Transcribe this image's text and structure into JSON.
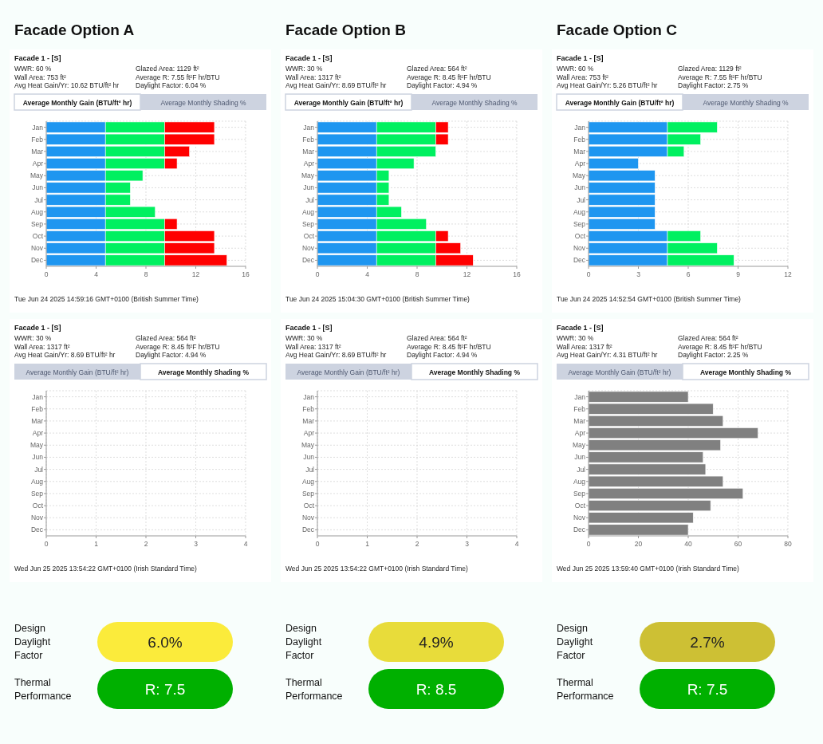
{
  "chart_data": [
    {
      "type": "bar",
      "orientation": "horizontal",
      "stacked": true,
      "grid": true,
      "title": "Facade Option A",
      "subtitle": "Facade 1 - [S]",
      "xlabel": "Average Monthly Gain (BTU/ft² hr)",
      "annotations": [
        "WWR: 60 %",
        "Glazed Area: 1129 ft²",
        "Wall Area: 753 ft²",
        "Average R: 7.55 ft²F hr/BTU",
        "Avg Heat Gain/Yr: 10.62 BTU/ft² hr",
        "Daylight Factor: 6.04 %",
        "Average Monthly Shading %",
        "Tue Jun 24 2025 14:59:16 GMT+0100 (British Summer Time)"
      ],
      "categories": [
        "Jan",
        "Feb",
        "Mar",
        "Apr",
        "May",
        "Jun",
        "Jul",
        "Aug",
        "Sep",
        "Oct",
        "Nov",
        "Dec"
      ],
      "xlim": [
        0,
        16
      ],
      "xticks": [
        0,
        4,
        8,
        12,
        16
      ],
      "series": [
        {
          "color": "#1e96f0",
          "values": [
            4.75,
            4.75,
            4.75,
            4.75,
            4.75,
            4.75,
            4.75,
            4.75,
            4.75,
            4.75,
            4.75,
            4.75
          ]
        },
        {
          "color": "#00f060",
          "values": [
            4.75,
            4.75,
            4.75,
            4.75,
            3,
            2,
            2,
            4,
            4.75,
            4.75,
            4.75,
            4.75
          ]
        },
        {
          "color": "#ff0000",
          "values": [
            4,
            4,
            2,
            1,
            null,
            null,
            null,
            null,
            1,
            4,
            4,
            5
          ]
        }
      ]
    },
    {
      "type": "bar",
      "orientation": "horizontal",
      "stacked": true,
      "grid": true,
      "title": "Facade Option B",
      "subtitle": "Facade 1 - [S]",
      "xlabel": "Average Monthly Gain (BTU/ft² hr)",
      "annotations": [
        "WWR: 30 %",
        "Glazed Area: 564 ft²",
        "Wall Area: 1317 ft²",
        "Average R: 8.45 ft²F hr/BTU",
        "Avg Heat Gain/Yr: 8.69 BTU/ft² hr",
        "Daylight Factor: 4.94 %",
        "Average Monthly Shading %",
        "Tue Jun 24 2025 15:04:30 GMT+0100 (British Summer Time)"
      ],
      "categories": [
        "Jan",
        "Feb",
        "Mar",
        "Apr",
        "May",
        "Jun",
        "Jul",
        "Aug",
        "Sep",
        "Oct",
        "Nov",
        "Dec"
      ],
      "xlim": [
        0,
        16
      ],
      "xticks": [
        0,
        4,
        8,
        12,
        16
      ],
      "series": [
        {
          "color": "#1e96f0",
          "values": [
            4.75,
            4.75,
            4.75,
            4.75,
            4.75,
            4.75,
            4.75,
            4.75,
            4.75,
            4.75,
            4.75,
            4.75
          ]
        },
        {
          "color": "#00f060",
          "values": [
            4.75,
            4.75,
            4.75,
            3,
            1,
            1,
            1,
            2,
            4,
            4.75,
            4.75,
            4.75
          ]
        },
        {
          "color": "#ff0000",
          "values": [
            1,
            1,
            null,
            null,
            null,
            null,
            null,
            null,
            null,
            1,
            2,
            3
          ]
        }
      ]
    },
    {
      "type": "bar",
      "orientation": "horizontal",
      "stacked": true,
      "grid": true,
      "title": "Facade Option C",
      "subtitle": "Facade 1 - [S]",
      "xlabel": "Average Monthly Gain (BTU/ft² hr)",
      "annotations": [
        "WWR: 60 %",
        "Glazed Area: 1129 ft²",
        "Wall Area: 753 ft²",
        "Average R: 7.55 ft²F hr/BTU",
        "Avg Heat Gain/Yr: 5.26 BTU/ft² hr",
        "Daylight Factor: 2.75 %",
        "Average Monthly Shading %",
        "Tue Jun 24 2025 14:52:54 GMT+0100 (British Summer Time)"
      ],
      "categories": [
        "Jan",
        "Feb",
        "Mar",
        "Apr",
        "May",
        "Jun",
        "Jul",
        "Aug",
        "Sep",
        "Oct",
        "Nov",
        "Dec"
      ],
      "xlim": [
        0,
        12
      ],
      "xticks": [
        0,
        3,
        6,
        9,
        12
      ],
      "series": [
        {
          "color": "#1e96f0",
          "values": [
            4.75,
            4.75,
            4.75,
            3,
            4,
            4,
            4,
            4,
            4,
            4.75,
            4.75,
            4.75
          ]
        },
        {
          "color": "#00f060",
          "values": [
            3,
            2,
            1,
            null,
            null,
            null,
            null,
            null,
            null,
            2,
            3,
            4
          ]
        }
      ]
    },
    {
      "type": "bar",
      "orientation": "horizontal",
      "grid": true,
      "subtitle": "Facade 1 - [S]",
      "xlabel": "Average Monthly Shading %",
      "annotations": [
        "WWR: 30 %",
        "Glazed Area: 564 ft²",
        "Wall Area: 1317 ft²",
        "Average R: 8.45 ft²F hr/BTU",
        "Avg Heat Gain/Yr: 8.69 BTU/ft² hr",
        "Daylight Factor: 4.94 %",
        "Average Monthly Gain (BTU/ft² hr)",
        "Wed Jun 25 2025 13:54:22 GMT+0100 (Irish Standard Time)"
      ],
      "categories": [
        "Jan",
        "Feb",
        "Mar",
        "Apr",
        "May",
        "Jun",
        "Jul",
        "Aug",
        "Sep",
        "Oct",
        "Nov",
        "Dec"
      ],
      "xlim": [
        0,
        4
      ],
      "xticks": [
        0,
        1,
        2,
        3,
        4
      ],
      "series": [
        {
          "values": [
            null,
            null,
            null,
            null,
            null,
            null,
            null,
            null,
            null,
            null,
            null,
            null
          ]
        }
      ]
    },
    {
      "type": "bar",
      "orientation": "horizontal",
      "grid": true,
      "subtitle": "Facade 1 - [S]",
      "xlabel": "Average Monthly Shading %",
      "annotations": [
        "WWR: 30 %",
        "Glazed Area: 564 ft²",
        "Wall Area: 1317 ft²",
        "Average R: 8.45 ft²F hr/BTU",
        "Avg Heat Gain/Yr: 8.69 BTU/ft² hr",
        "Daylight Factor: 4.94 %",
        "Average Monthly Gain (BTU/ft² hr)",
        "Wed Jun 25 2025 13:54:22 GMT+0100 (Irish Standard Time)"
      ],
      "categories": [
        "Jan",
        "Feb",
        "Mar",
        "Apr",
        "May",
        "Jun",
        "Jul",
        "Aug",
        "Sep",
        "Oct",
        "Nov",
        "Dec"
      ],
      "xlim": [
        0,
        4
      ],
      "xticks": [
        0,
        1,
        2,
        3,
        4
      ],
      "series": [
        {
          "values": [
            null,
            null,
            null,
            null,
            null,
            null,
            null,
            null,
            null,
            null,
            null,
            null
          ]
        }
      ]
    },
    {
      "type": "bar",
      "orientation": "horizontal",
      "grid": true,
      "subtitle": "Facade 1 - [S]",
      "xlabel": "Average Monthly Shading %",
      "annotations": [
        "WWR: 30 %",
        "Glazed Area: 564 ft²",
        "Wall Area: 1317 ft²",
        "Average R: 8.45 ft²F hr/BTU",
        "Avg Heat Gain/Yr: 4.31 BTU/ft² hr",
        "Daylight Factor: 2.25 %",
        "Average Monthly Gain (BTU/ft² hr)",
        "Wed Jun 25 2025 13:59:40 GMT+0100 (Irish Standard Time)"
      ],
      "categories": [
        "Jan",
        "Feb",
        "Mar",
        "Apr",
        "May",
        "Jun",
        "Jul",
        "Aug",
        "Sep",
        "Oct",
        "Nov",
        "Dec"
      ],
      "xlim": [
        0,
        80
      ],
      "xticks": [
        0,
        20,
        40,
        60,
        80
      ],
      "series": [
        {
          "color": "#808080",
          "values": [
            40,
            50,
            54,
            68,
            53,
            46,
            47,
            54,
            62,
            49,
            42,
            40
          ]
        }
      ]
    },
    {
      "type": "other",
      "annotations": [
        "Design Daylight Factor",
        "6.0%",
        "Thermal Performance",
        "R: 7.5"
      ],
      "colors": [
        "#fbeb3b",
        "#00b000"
      ]
    },
    {
      "type": "other",
      "annotations": [
        "Design Daylight Factor",
        "4.9%",
        "Thermal Performance",
        "R: 8.5"
      ],
      "colors": [
        "#e8dc3a",
        "#00b000"
      ]
    },
    {
      "type": "other",
      "annotations": [
        "Design Daylight Factor",
        "2.7%",
        "Thermal Performance",
        "R: 7.5"
      ],
      "colors": [
        "#cdc034",
        "#00b000"
      ]
    }
  ]
}
